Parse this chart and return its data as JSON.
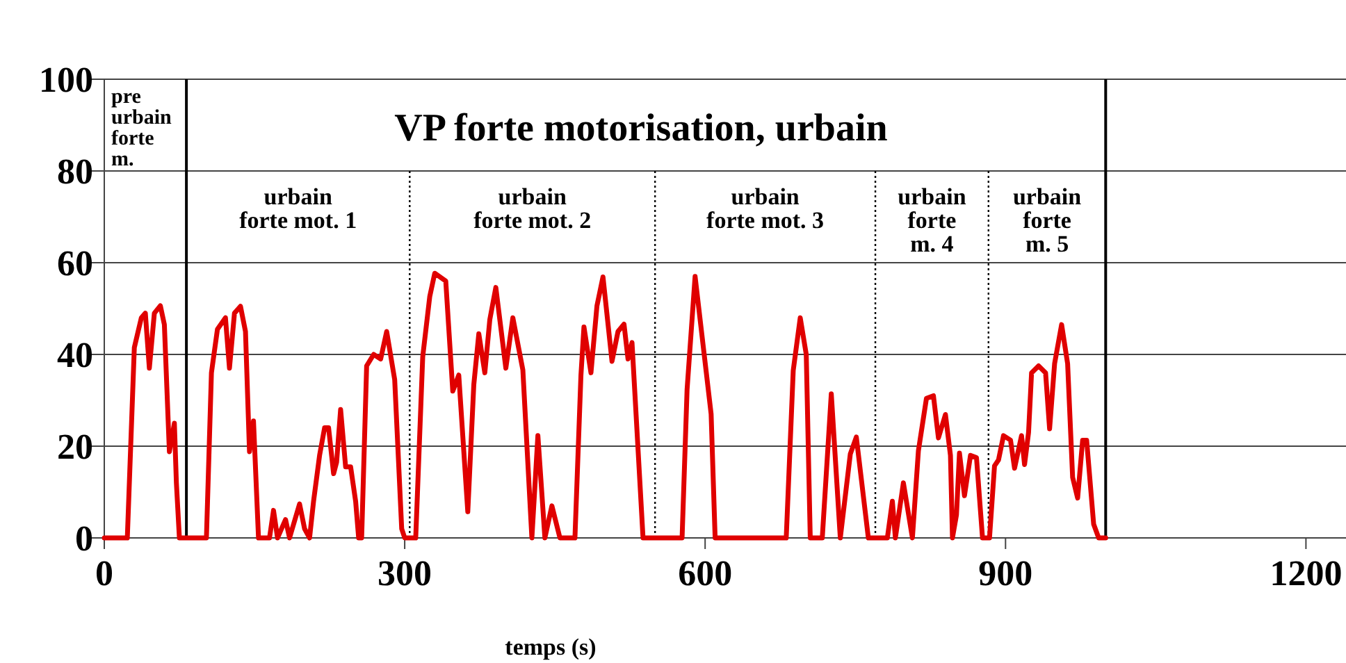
{
  "chart_data": {
    "type": "line",
    "title": "VP forte motorisation, urbain",
    "xlabel": "temps (s)",
    "x": [
      0,
      23,
      30,
      37,
      41,
      45,
      50,
      56,
      60,
      65,
      70,
      72,
      75,
      102,
      107,
      113,
      121,
      125,
      130,
      136,
      141,
      145,
      149,
      154,
      165,
      169,
      173,
      181,
      185,
      195,
      200,
      205,
      209,
      215,
      220,
      224,
      229,
      232,
      236,
      241,
      246,
      251,
      254,
      257,
      262,
      269,
      276,
      282,
      290,
      297,
      300,
      311,
      318,
      325,
      330,
      341,
      348,
      354,
      363,
      369,
      374,
      380,
      385,
      391,
      401,
      408,
      418,
      427,
      433,
      440,
      447,
      455,
      470,
      476,
      479,
      486,
      492,
      498,
      507,
      513,
      519,
      523,
      527,
      538,
      577,
      582,
      590,
      606,
      610,
      681,
      688,
      695,
      701,
      705,
      717,
      726,
      735,
      745,
      751,
      763,
      782,
      787,
      790,
      798,
      807,
      813,
      821,
      828,
      833,
      840,
      845,
      847,
      851,
      854,
      859,
      865,
      871,
      877,
      884,
      889,
      893,
      898,
      905,
      909,
      916,
      919,
      923,
      926,
      933,
      940,
      944,
      949,
      956,
      962,
      967,
      972,
      977,
      981,
      988,
      993,
      1000
    ],
    "series": [
      {
        "color": "#e00000",
        "values": [
          0,
          0,
          41.5,
          48,
          49,
          37,
          49,
          50.6,
          46.5,
          18.8,
          25,
          12,
          0,
          0,
          36,
          45.5,
          48,
          37,
          49,
          50.5,
          45,
          18.8,
          25.5,
          0,
          0,
          6,
          0,
          4,
          0,
          7.4,
          2,
          0,
          8,
          18,
          24,
          24,
          14,
          16.5,
          28,
          15.5,
          15.5,
          8,
          0,
          0,
          37.5,
          40,
          39,
          45,
          34.5,
          2,
          0,
          0,
          39.5,
          52.6,
          57.7,
          56,
          32,
          35.5,
          5.7,
          33.4,
          44.5,
          36,
          47.6,
          54.6,
          37,
          48,
          36.6,
          0,
          22.3,
          0,
          7,
          0,
          0,
          35.5,
          46,
          36,
          50.6,
          56.9,
          38.5,
          45,
          46.6,
          39,
          42.6,
          0,
          0,
          32.4,
          57,
          27,
          0,
          0,
          36.5,
          48,
          40,
          0,
          0,
          31.4,
          0,
          18.3,
          22,
          0,
          0,
          8,
          0,
          12,
          0,
          19,
          30.4,
          31,
          21.8,
          26.9,
          18,
          0,
          5,
          18.5,
          9.2,
          18,
          17.5,
          0,
          0,
          15.7,
          17,
          22.3,
          21.3,
          15.2,
          22.3,
          16,
          23,
          36,
          37.5,
          36,
          23.8,
          38,
          46.5,
          38,
          13.2,
          8.7,
          21.3,
          21.3,
          3,
          0,
          0
        ]
      }
    ],
    "xlim": [
      0,
      1240
    ],
    "ylim": [
      0,
      100
    ],
    "xticks": [
      0,
      300,
      600,
      900,
      1200
    ],
    "yticks": [
      0,
      20,
      40,
      60,
      80,
      100
    ],
    "grid": "y",
    "ref_lines": [
      {
        "axis": "x",
        "value": 82,
        "line_style": "solid"
      },
      {
        "axis": "x",
        "value": 305,
        "line_style": "dotted"
      },
      {
        "axis": "x",
        "value": 550,
        "line_style": "dotted"
      },
      {
        "axis": "x",
        "value": 770,
        "line_style": "dotted"
      },
      {
        "axis": "x",
        "value": 883,
        "line_style": "dotted"
      },
      {
        "axis": "x",
        "value": 1000,
        "line_style": "solid"
      }
    ],
    "annotations": [
      "pre\nurbain\nforte\nm.",
      "urbain\nforte mot. 1",
      "urbain\nforte mot. 2",
      "urbain\nforte mot. 3",
      "urbain\nforte\nm. 4",
      "urbain\nforte\nm. 5"
    ]
  }
}
